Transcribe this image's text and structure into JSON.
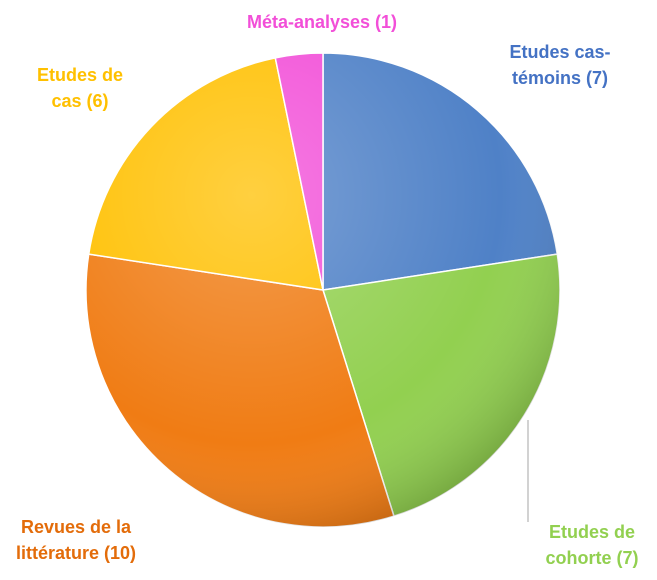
{
  "chart_data": {
    "type": "pie",
    "categories": [
      "Etudes cas-témoins (7)",
      "Etudes de cohorte (7)",
      "Revues de la littérature (10)",
      "Etudes de cas (6)",
      "Méta-analyses (1)"
    ],
    "values": [
      7,
      7,
      10,
      6,
      1
    ],
    "colors": [
      "#4f81c7",
      "#92d050",
      "#f07c14",
      "#ffc000",
      "#f24fd8"
    ],
    "label_colors": [
      "#4472c4",
      "#92d050",
      "#e36c0a",
      "#ffc000",
      "#f24fd8"
    ]
  }
}
